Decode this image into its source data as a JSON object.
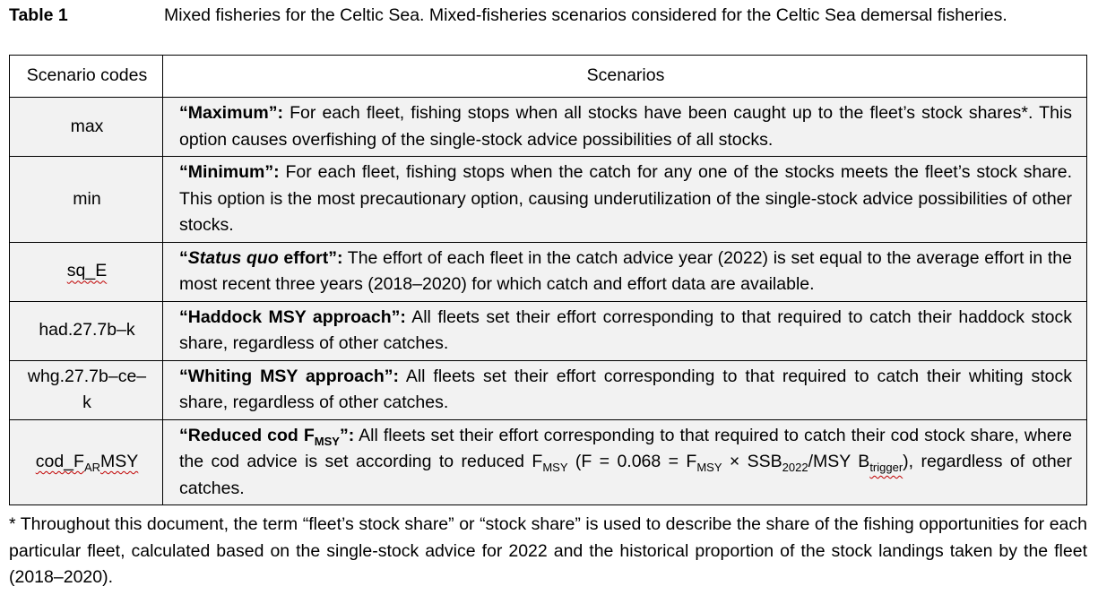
{
  "caption": {
    "label": "Table 1",
    "text": "Mixed fisheries for the Celtic Sea. Mixed-fisheries scenarios considered for the Celtic Sea demersal fisheries."
  },
  "table": {
    "headers": {
      "code": "Scenario codes",
      "scenarios": "Scenarios"
    },
    "rows": [
      {
        "code": "max",
        "lead": "“Maximum”:",
        "text": " For each fleet, fishing stops when all stocks have been caught up to the fleet’s stock shares*. This option causes overfishing of the single-stock advice possibilities of all stocks."
      },
      {
        "code": "min",
        "lead": "“Minimum”:",
        "text": " For each fleet, fishing stops when the catch for any one of the stocks meets the fleet’s stock share. This option is the most precautionary option, causing underutilization of the single-stock advice possibilities of other stocks."
      },
      {
        "code": "sq_E",
        "lead_open": "“",
        "lead_italic": "Status quo",
        "lead_rest": " effort”:",
        "text": " The effort of each fleet in the catch advice year (2022) is set equal to the average effort in the most recent three years (2018–2020) for which catch and effort data are available."
      },
      {
        "code": "had.27.7b–k",
        "lead": "“Haddock MSY approach”:",
        "text": " All fleets set their effort corresponding to that required to catch their haddock stock share, regardless of other catches."
      },
      {
        "code": "whg.27.7b–ce–k",
        "lead": "“Whiting MSY approach”:",
        "text": " All fleets set their effort corresponding to that required to catch their whiting stock share, regardless of other catches."
      },
      {
        "code_main": "cod_F",
        "code_sub": "AR",
        "code_end": "MSY",
        "lead_main": "“Reduced cod F",
        "lead_sub": "MSY",
        "lead_end": "”:",
        "text_a": " All fleets set their effort corresponding to that required to catch their cod stock share, where the cod advice is set according to reduced F",
        "sub1": "MSY",
        "text_b": " (F = 0.068 = F",
        "sub2": "MSY",
        "text_c": " × SSB",
        "sub3": "2022",
        "text_d": "/MSY B",
        "sub4": "trigger",
        "text_e": "), regardless of other catches."
      }
    ]
  },
  "footnote": "* Throughout this document, the term “fleet’s stock share” or “stock share” is used to describe the share of the fishing opportunities for each particular fleet, calculated based on the single-stock advice for 2022 and the historical proportion of the stock landings taken by the fleet (2018–2020)."
}
